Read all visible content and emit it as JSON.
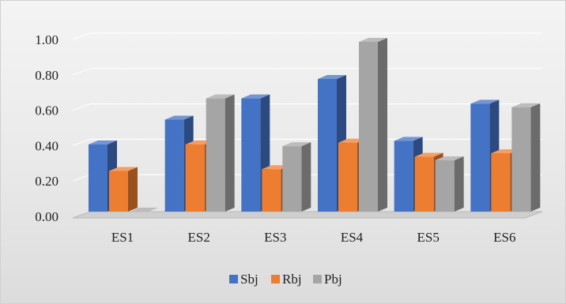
{
  "chart_data": {
    "type": "bar",
    "categories": [
      "ES1",
      "ES2",
      "ES3",
      "ES4",
      "ES5",
      "ES6"
    ],
    "series": [
      {
        "name": "Sbj",
        "color": "#4472C4",
        "values": [
          0.38,
          0.52,
          0.64,
          0.75,
          0.4,
          0.61
        ]
      },
      {
        "name": "Rbj",
        "color": "#ED7D31",
        "values": [
          0.23,
          0.38,
          0.24,
          0.39,
          0.31,
          0.33
        ]
      },
      {
        "name": "Pbj",
        "color": "#A5A5A5",
        "values": [
          0.0,
          0.64,
          0.37,
          0.96,
          0.29,
          0.59
        ]
      }
    ],
    "ylim": [
      0,
      1.0
    ],
    "yticks": [
      "0.00",
      "0.20",
      "0.40",
      "0.60",
      "0.80",
      "1.00"
    ],
    "title": "",
    "xlabel": "",
    "ylabel": "",
    "legend_position": "bottom",
    "grid": true,
    "style": "3d-clustered-column"
  }
}
